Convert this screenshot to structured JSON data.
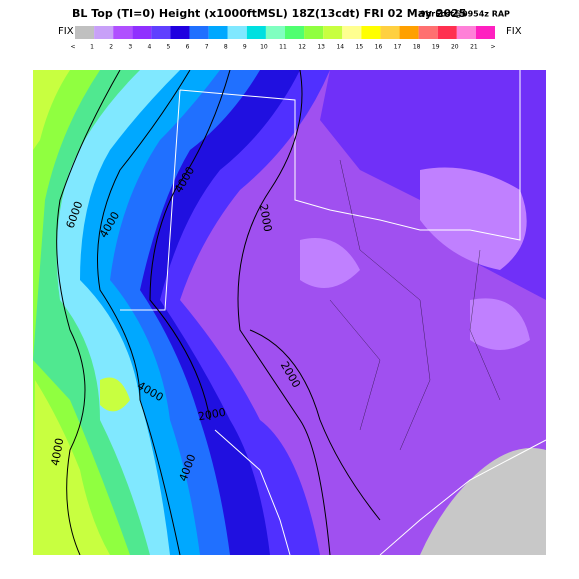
{
  "header": {
    "title": "BL Top (TI=0) Height (x1000ftMSL) 18Z(13cdt) FRI 02 May 2025",
    "forecast": "9hrFcst@0954z RAP"
  },
  "legend": {
    "left_label": "FIX",
    "right_label": "FIX",
    "labels": [
      "<",
      "1",
      "2",
      "3",
      "4",
      "5",
      "6",
      "7",
      "8",
      "9",
      "10",
      "11",
      "12",
      "13",
      "14",
      "15",
      "16",
      "17",
      "18",
      "19",
      "20",
      "21",
      ">"
    ],
    "colors": [
      "#c0c0c0",
      "#c8a0f8",
      "#b050ff",
      "#9030ff",
      "#6040ff",
      "#2000e0",
      "#2070ff",
      "#00a8ff",
      "#80e8ff",
      "#00e0e0",
      "#80ffc0",
      "#50ff70",
      "#90ff40",
      "#c8ff40",
      "#ffff90",
      "#ffff00",
      "#ffd040",
      "#ffa000",
      "#ff7070",
      "#ff3050",
      "#ff80d8",
      "#ff20c0"
    ]
  },
  "map": {
    "contour_labels": [
      "4000",
      "6000",
      "4000",
      "2000",
      "2000",
      "4000",
      "2000",
      "4000",
      "4000"
    ]
  }
}
